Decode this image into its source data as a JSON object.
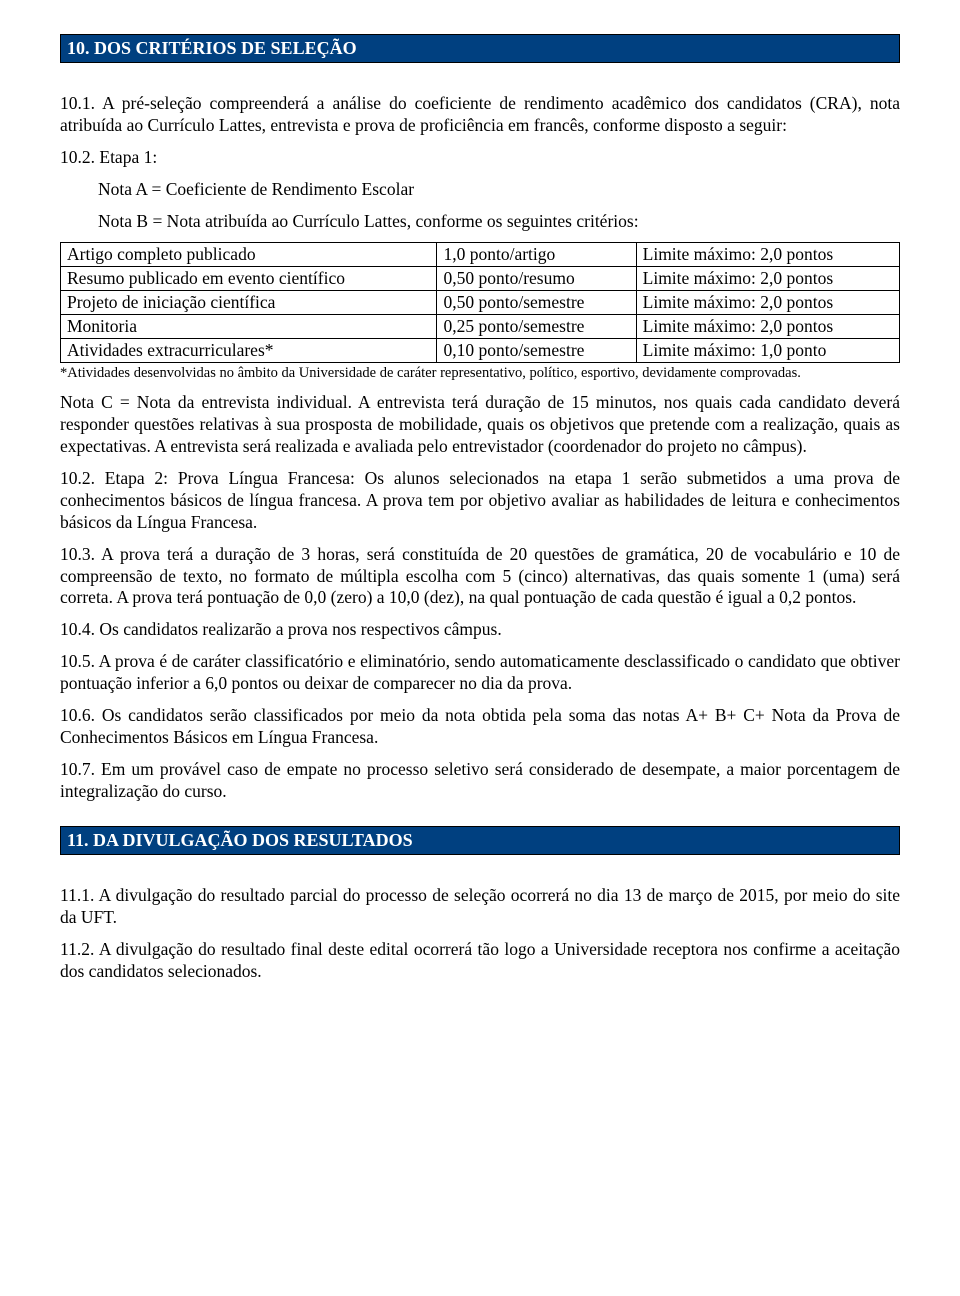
{
  "header10": "10. DOS CRITÉRIOS DE SELEÇÃO",
  "p10_1": "10.1. A pré-seleção compreenderá a análise do coeficiente de rendimento acadêmico dos candidatos (CRA), nota atribuída ao Currículo Lattes, entrevista e prova de proficiência em francês, conforme disposto a seguir:",
  "p10_2_intro": "10.2. Etapa 1:",
  "notaA": "Nota A = Coeficiente de Rendimento Escolar",
  "notaB": "Nota B = Nota atribuída ao Currículo Lattes, conforme os seguintes critérios:",
  "table": {
    "rows": [
      [
        "Artigo completo publicado",
        "1,0 ponto/artigo",
        "Limite máximo: 2,0 pontos"
      ],
      [
        "Resumo publicado em evento científico",
        "0,50 ponto/resumo",
        "Limite máximo: 2,0 pontos"
      ],
      [
        "Projeto de iniciação científica",
        "0,50 ponto/semestre",
        "Limite máximo: 2,0 pontos"
      ],
      [
        "Monitoria",
        "0,25 ponto/semestre",
        "Limite máximo: 2,0 pontos"
      ],
      [
        "Atividades extracurriculares*",
        "0,10 ponto/semestre",
        "Limite máximo: 1,0 ponto"
      ]
    ]
  },
  "footnote": "*Atividades desenvolvidas no âmbito da Universidade de caráter representativo, político, esportivo, devidamente comprovadas.",
  "notaC": "Nota C = Nota da entrevista individual. A entrevista terá duração de 15 minutos, nos quais cada candidato deverá responder questões relativas à sua prosposta de mobilidade, quais os objetivos que pretende com a realização, quais as expectativas. A entrevista será realizada e avaliada pelo entrevistador (coordenador do projeto no câmpus).",
  "p10_2_etapa2": "10.2. Etapa 2: Prova Língua Francesa: Os alunos selecionados na etapa 1 serão submetidos a uma prova de conhecimentos básicos de língua francesa. A prova tem por objetivo avaliar as habilidades de leitura e conhecimentos básicos da Língua Francesa.",
  "p10_3": "10.3. A prova terá a duração de 3 horas, será constituída de 20 questões de gramática, 20 de vocabulário e 10 de compreensão de texto, no formato de múltipla escolha com 5 (cinco) alternativas, das quais somente 1 (uma) será correta. A prova terá pontuação de 0,0 (zero) a 10,0 (dez), na qual pontuação de cada questão é igual a 0,2 pontos.",
  "p10_4": "10.4. Os candidatos realizarão a prova nos respectivos câmpus.",
  "p10_5": "10.5. A prova é de caráter classificatório e eliminatório, sendo automaticamente desclassificado o candidato que obtiver pontuação inferior a 6,0 pontos ou deixar de comparecer no dia da prova.",
  "p10_6": "10.6. Os candidatos serão classificados por meio da nota obtida pela soma das notas A+ B+ C+ Nota da Prova de Conhecimentos Básicos em Língua Francesa.",
  "p10_7": "10.7. Em um provável caso de empate no processo seletivo será considerado de desempate, a maior porcentagem de integralização do curso.",
  "header11": "11. DA DIVULGAÇÃO DOS RESULTADOS",
  "p11_1": "11.1. A divulgação do resultado parcial do processo de seleção ocorrerá no dia 13 de março de 2015, por meio do site da UFT.",
  "p11_2": "11.2. A divulgação do resultado final deste edital ocorrerá tão logo a Universidade receptora nos confirme a aceitação dos candidatos selecionados.",
  "colors": {
    "header_bg": "#004080",
    "header_fg": "#ffffff",
    "text": "#000000",
    "border": "#000000",
    "page_bg": "#ffffff"
  }
}
